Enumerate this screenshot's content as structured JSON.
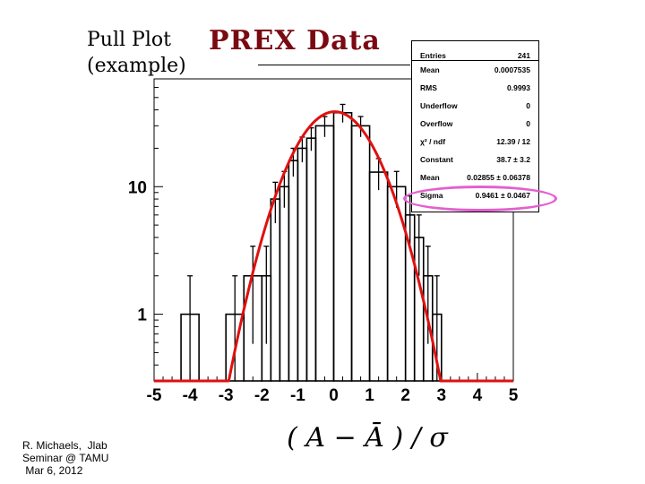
{
  "slide": {
    "heading_line1": "Pull  Plot",
    "heading_line2": "(example)",
    "title": "PREX  Data",
    "credits": [
      "R. Michaels,  Jlab",
      "Seminar @ TAMU",
      " Mar 6, 2012"
    ],
    "colors": {
      "title": "#7a0a12",
      "fit_curve": "#e01010",
      "highlight_ellipse": "#e45fd0"
    }
  },
  "stats_box": {
    "rows": [
      {
        "name": "Entries",
        "value": "241"
      },
      {
        "name": "Mean",
        "value": "0.0007535"
      },
      {
        "name": "RMS",
        "value": "0.9993"
      },
      {
        "name": "Underflow",
        "value": "0"
      },
      {
        "name": "Overflow",
        "value": "0"
      },
      {
        "name": "χ² / ndf",
        "value": "12.39 / 12"
      },
      {
        "name": "Constant",
        "value": "38.7 ± 3.2"
      },
      {
        "name": "Mean",
        "value": "0.02855 ± 0.06378"
      },
      {
        "name": "Sigma",
        "value": "0.9461 ± 0.0467"
      }
    ]
  },
  "chart_data": {
    "type": "bar",
    "subtype": "histogram-with-gaussian-fit",
    "title": "",
    "xlabel": "( A − Ā ) / σ",
    "ylabel": "",
    "xlim": [
      -5,
      5
    ],
    "ylim": [
      0.3,
      70
    ],
    "y_scale": "log",
    "x_tick_labels": [
      "-5",
      "-4",
      "-3",
      "-2",
      "-1",
      "0",
      "1",
      "2",
      "3",
      "4",
      "5"
    ],
    "y_tick_labels": [
      {
        "value": 1,
        "label": "1"
      },
      {
        "value": 10,
        "label": "10"
      }
    ],
    "bin_width": 0.5,
    "bins": [
      {
        "x_low": -4.25,
        "x_high": -3.75,
        "count": 1
      },
      {
        "x_low": -3.0,
        "x_high": -2.5,
        "count": 1
      },
      {
        "x_low": -2.5,
        "x_high": -2.0,
        "count": 2
      },
      {
        "x_low": -2.0,
        "x_high": -1.75,
        "count": 2
      },
      {
        "x_low": -1.75,
        "x_high": -1.5,
        "count": 8
      },
      {
        "x_low": -1.5,
        "x_high": -1.25,
        "count": 10
      },
      {
        "x_low": -1.25,
        "x_high": -1.0,
        "count": 16
      },
      {
        "x_low": -1.0,
        "x_high": -0.75,
        "count": 20
      },
      {
        "x_low": -0.75,
        "x_high": -0.5,
        "count": 24
      },
      {
        "x_low": -0.5,
        "x_high": 0.0,
        "count": 30
      },
      {
        "x_low": 0.0,
        "x_high": 0.5,
        "count": 38
      },
      {
        "x_low": 0.5,
        "x_high": 1.0,
        "count": 30
      },
      {
        "x_low": 1.0,
        "x_high": 1.5,
        "count": 13
      },
      {
        "x_low": 1.5,
        "x_high": 2.0,
        "count": 10
      },
      {
        "x_low": 2.0,
        "x_high": 2.25,
        "count": 6
      },
      {
        "x_low": 2.25,
        "x_high": 2.5,
        "count": 4
      },
      {
        "x_low": 2.5,
        "x_high": 2.75,
        "count": 2
      },
      {
        "x_low": 2.75,
        "x_high": 3.0,
        "count": 1
      }
    ],
    "fit": {
      "function": "gaussian",
      "constant": 38.7,
      "mean": 0.02855,
      "sigma": 0.9461
    },
    "grid": false,
    "legend": "stats box top-right"
  }
}
